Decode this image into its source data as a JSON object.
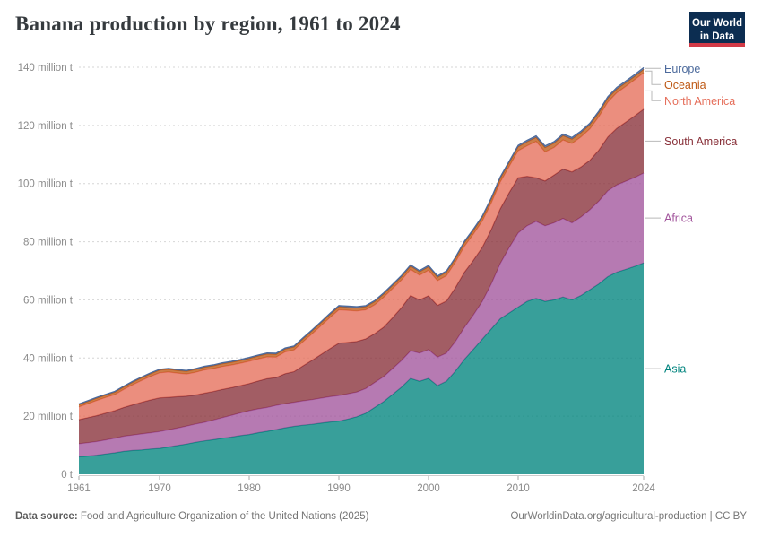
{
  "header": {
    "title": "Banana production by region, 1961 to 2024",
    "logo_line1": "Our World",
    "logo_line2": "in Data"
  },
  "footer": {
    "source_label": "Data source:",
    "source_text": " Food and Agriculture Organization of the United Nations (2025)",
    "credit": "OurWorldinData.org/agricultural-production | CC BY"
  },
  "chart_data": {
    "type": "area",
    "stacked": true,
    "title": "Banana production by region, 1961 to 2024",
    "unit": "million tonnes",
    "ylim": [
      0,
      140
    ],
    "grid": "dashed-horizontal",
    "legend_position": "right",
    "x": [
      1961,
      1962,
      1963,
      1964,
      1965,
      1966,
      1967,
      1968,
      1969,
      1970,
      1971,
      1972,
      1973,
      1974,
      1975,
      1976,
      1977,
      1978,
      1979,
      1980,
      1981,
      1982,
      1983,
      1984,
      1985,
      1986,
      1987,
      1988,
      1989,
      1990,
      1991,
      1992,
      1993,
      1994,
      1995,
      1996,
      1997,
      1998,
      1999,
      2000,
      2001,
      2002,
      2003,
      2004,
      2005,
      2006,
      2007,
      2008,
      2009,
      2010,
      2011,
      2012,
      2013,
      2014,
      2015,
      2016,
      2017,
      2018,
      2019,
      2020,
      2021,
      2022,
      2023,
      2024
    ],
    "xticks": [
      1961,
      1970,
      1980,
      1990,
      2000,
      2010,
      2024
    ],
    "yticks": [
      {
        "v": 0,
        "label": "0 t"
      },
      {
        "v": 20,
        "label": "20 million t"
      },
      {
        "v": 40,
        "label": "40 million t"
      },
      {
        "v": 60,
        "label": "60 million t"
      },
      {
        "v": 80,
        "label": "80 million t"
      },
      {
        "v": 100,
        "label": "100 million t"
      },
      {
        "v": 120,
        "label": "120 million t"
      },
      {
        "v": 140,
        "label": "140 million t"
      }
    ],
    "series": [
      {
        "name": "Asia",
        "color": "#00847E",
        "values": [
          6.0,
          6.3,
          6.6,
          7.0,
          7.4,
          7.9,
          8.2,
          8.4,
          8.7,
          8.9,
          9.4,
          9.9,
          10.4,
          11.0,
          11.5,
          11.9,
          12.4,
          12.8,
          13.3,
          13.7,
          14.3,
          14.8,
          15.4,
          16.0,
          16.5,
          16.9,
          17.2,
          17.6,
          18.0,
          18.3,
          19.0,
          19.8,
          21.0,
          23.0,
          25.0,
          27.5,
          30.0,
          33.0,
          32.0,
          33.0,
          30.5,
          32.0,
          35.5,
          39.5,
          43.0,
          46.5,
          50.0,
          53.5,
          55.5,
          57.5,
          59.5,
          60.5,
          59.5,
          60.0,
          61.0,
          60.0,
          61.5,
          63.5,
          65.5,
          68.0,
          69.5,
          70.5,
          71.5,
          72.7
        ]
      },
      {
        "name": "Africa",
        "color": "#A2559C",
        "values": [
          4.5,
          4.6,
          4.7,
          4.85,
          5.0,
          5.2,
          5.3,
          5.5,
          5.6,
          5.8,
          5.9,
          6.0,
          6.2,
          6.3,
          6.4,
          6.8,
          7.1,
          7.5,
          7.8,
          8.2,
          8.2,
          8.2,
          8.3,
          8.3,
          8.3,
          8.4,
          8.5,
          8.6,
          8.7,
          8.8,
          8.7,
          8.5,
          8.5,
          8.6,
          8.6,
          8.9,
          9.2,
          9.5,
          9.7,
          9.9,
          9.8,
          9.7,
          10.2,
          11.0,
          11.8,
          13.0,
          15.5,
          19.0,
          22.5,
          25.5,
          26.0,
          26.5,
          26.0,
          26.5,
          27.0,
          26.5,
          27.0,
          27.5,
          28.5,
          29.5,
          30.0,
          30.3,
          30.6,
          30.9
        ]
      },
      {
        "name": "South America",
        "color": "#883039",
        "values": [
          8.3,
          8.6,
          8.9,
          9.2,
          9.5,
          9.9,
          10.4,
          10.9,
          11.3,
          11.6,
          11.2,
          10.8,
          10.3,
          10.0,
          10.0,
          9.8,
          9.7,
          9.5,
          9.4,
          9.3,
          9.6,
          9.9,
          9.6,
          10.3,
          10.5,
          12.0,
          13.5,
          15.0,
          16.5,
          18.0,
          17.7,
          17.4,
          17.1,
          16.8,
          17.0,
          17.5,
          18.2,
          19.0,
          18.3,
          18.5,
          17.8,
          17.9,
          18.5,
          19.0,
          18.8,
          18.6,
          18.7,
          18.8,
          18.9,
          19.0,
          17.0,
          15.0,
          15.4,
          16.4,
          17.0,
          17.5,
          17.2,
          17.0,
          17.5,
          18.5,
          19.5,
          20.3,
          21.2,
          22.0
        ]
      },
      {
        "name": "North America",
        "color": "#E56E5A",
        "values": [
          4.4,
          4.8,
          5.2,
          5.4,
          5.5,
          6.2,
          6.9,
          7.5,
          8.1,
          8.6,
          8.7,
          8.1,
          7.6,
          7.8,
          8.0,
          7.9,
          7.9,
          7.8,
          7.7,
          7.7,
          7.6,
          7.5,
          7.0,
          7.5,
          7.5,
          8.3,
          9.1,
          9.9,
          10.7,
          11.5,
          11.0,
          10.5,
          10.0,
          9.9,
          10.3,
          10.0,
          9.5,
          9.0,
          8.5,
          8.8,
          8.5,
          8.7,
          8.8,
          8.9,
          9.0,
          9.0,
          9.1,
          9.2,
          9.0,
          9.3,
          10.5,
          12.5,
          10.0,
          9.5,
          10.0,
          9.8,
          10.3,
          10.8,
          11.5,
          12.0,
          12.2,
          12.3,
          12.4,
          12.5
        ]
      },
      {
        "name": "Oceania",
        "color": "#BE5915",
        "values": [
          0.75,
          0.75,
          0.8,
          0.8,
          0.85,
          0.85,
          0.9,
          0.9,
          0.9,
          0.95,
          0.95,
          0.95,
          0.95,
          0.95,
          0.95,
          0.95,
          0.95,
          0.95,
          0.95,
          0.95,
          1.0,
          1.0,
          1.0,
          1.0,
          1.0,
          1.0,
          1.0,
          1.0,
          1.05,
          1.05,
          1.05,
          1.05,
          1.05,
          1.1,
          1.1,
          1.1,
          1.1,
          1.1,
          1.15,
          1.2,
          1.2,
          1.2,
          1.2,
          1.25,
          1.25,
          1.25,
          1.3,
          1.3,
          1.3,
          1.35,
          1.4,
          1.4,
          1.5,
          1.5,
          1.5,
          1.5,
          1.5,
          1.45,
          1.4,
          1.35,
          1.3,
          1.25,
          1.2,
          1.2
        ]
      },
      {
        "name": "Europe",
        "color": "#4C6A9C",
        "values": [
          0.3,
          0.3,
          0.3,
          0.3,
          0.3,
          0.3,
          0.3,
          0.3,
          0.3,
          0.3,
          0.3,
          0.3,
          0.3,
          0.3,
          0.3,
          0.3,
          0.3,
          0.3,
          0.35,
          0.35,
          0.35,
          0.35,
          0.35,
          0.35,
          0.35,
          0.35,
          0.35,
          0.4,
          0.4,
          0.4,
          0.4,
          0.4,
          0.4,
          0.4,
          0.4,
          0.4,
          0.45,
          0.45,
          0.45,
          0.45,
          0.45,
          0.45,
          0.45,
          0.5,
          0.5,
          0.5,
          0.5,
          0.5,
          0.5,
          0.5,
          0.5,
          0.5,
          0.55,
          0.55,
          0.55,
          0.55,
          0.55,
          0.55,
          0.55,
          0.55,
          0.6,
          0.6,
          0.6,
          0.6
        ]
      }
    ]
  },
  "colors": {
    "grid": "#d6d6d6",
    "axis_text": "#8a8a8a",
    "baseline": "#cccccc",
    "tick": "#a8a8a8",
    "connector": "#b9b9b9",
    "logo_bg": "#0c2d51",
    "logo_red": "#d23a47"
  }
}
